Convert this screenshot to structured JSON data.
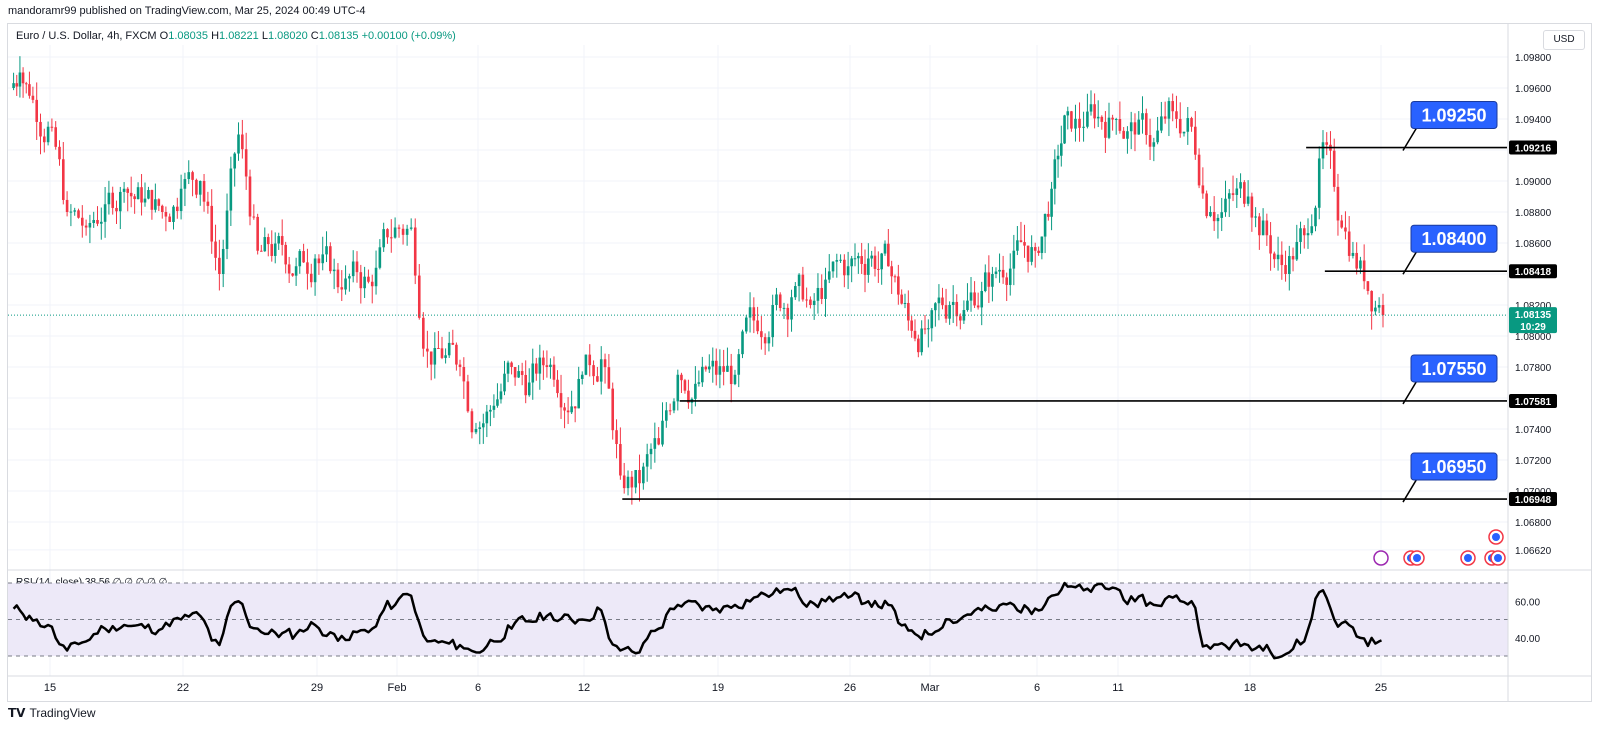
{
  "header": {
    "publisher_line": "mandoramr99 published on TradingView.com, Mar 25, 2024 00:49 UTC-4",
    "symbol": "Euro / U.S. Dollar, 4h, FXCM",
    "o_label": "O",
    "o_value": "1.08035",
    "h_label": "H",
    "h_value": "1.08221",
    "l_label": "L",
    "l_value": "1.08020",
    "c_label": "C",
    "c_value": "1.08135",
    "change": "+0.00100 (+0.09%)"
  },
  "currency_button": "USD",
  "rsi_legend": "RSI (14, close)  38.56  ∅  ∅     ∅  ∅  ∅",
  "footer": {
    "brand": "TradingView"
  },
  "colors": {
    "up": "#089981",
    "down": "#f23645",
    "callout": "#2962ff",
    "rsi_band": "#ede9f8",
    "line": "#000000"
  },
  "chart_data": {
    "type": "candlestick",
    "symbol": "EUR/USD",
    "timeframe": "4h",
    "ylim": [
      1.0655,
      1.0985
    ],
    "y_ticks": [
      "1.09800",
      "1.09600",
      "1.09400",
      "1.09200",
      "1.09000",
      "1.08800",
      "1.08600",
      "1.08400",
      "1.08200",
      "1.08000",
      "1.07800",
      "1.07600",
      "1.07400",
      "1.07200",
      "1.07000",
      "1.06800",
      "1.06620"
    ],
    "x_ticks": [
      "15",
      "22",
      "29",
      "Feb",
      "6",
      "12",
      "19",
      "26",
      "Mar",
      "6",
      "11",
      "18",
      "25"
    ],
    "last_price": {
      "value": "1.08135",
      "countdown": "10:29"
    },
    "horizontal_levels": [
      {
        "value": 1.09216,
        "tag": "1.09216",
        "callout": "1.09250",
        "start_date": "Mar 21"
      },
      {
        "value": 1.08418,
        "tag": "1.08418",
        "callout": "1.08400",
        "start_date": "Mar 22"
      },
      {
        "value": 1.07581,
        "tag": "1.07581",
        "callout": "1.07550",
        "start_date": "Feb 17"
      },
      {
        "value": 1.06948,
        "tag": "1.06948",
        "callout": "1.06950",
        "start_date": "Feb 14"
      }
    ],
    "price_path": [
      {
        "date": "Jan 11",
        "close": 1.097
      },
      {
        "date": "Jan 12",
        "close": 1.0955
      },
      {
        "date": "Jan 13",
        "close": 1.0935
      },
      {
        "date": "Jan 15",
        "close": 1.088
      },
      {
        "date": "Jan 16",
        "close": 1.087
      },
      {
        "date": "Jan 17",
        "close": 1.0885
      },
      {
        "date": "Jan 18",
        "close": 1.0895
      },
      {
        "date": "Jan 19",
        "close": 1.088
      },
      {
        "date": "Jan 21",
        "close": 1.0895
      },
      {
        "date": "Jan 22",
        "close": 1.09
      },
      {
        "date": "Jan 23",
        "close": 1.084
      },
      {
        "date": "Jan 24",
        "close": 1.093
      },
      {
        "date": "Jan 25",
        "close": 1.0855
      },
      {
        "date": "Jan 26",
        "close": 1.0845
      },
      {
        "date": "Jan 28",
        "close": 1.085
      },
      {
        "date": "Jan 29",
        "close": 1.083
      },
      {
        "date": "Jan 30",
        "close": 1.0835
      },
      {
        "date": "Jan 31",
        "close": 1.087
      },
      {
        "date": "Feb 1",
        "close": 1.087
      },
      {
        "date": "Feb 2",
        "close": 1.079
      },
      {
        "date": "Feb 3",
        "close": 1.078
      },
      {
        "date": "Feb 5",
        "close": 1.074
      },
      {
        "date": "Feb 6",
        "close": 1.0755
      },
      {
        "date": "Feb 7",
        "close": 1.078
      },
      {
        "date": "Feb 8",
        "close": 1.077
      },
      {
        "date": "Feb 9",
        "close": 1.078
      },
      {
        "date": "Feb 10",
        "close": 1.0775
      },
      {
        "date": "Feb 12",
        "close": 1.0785
      },
      {
        "date": "Feb 13",
        "close": 1.071
      },
      {
        "date": "Feb 14",
        "close": 1.0705
      },
      {
        "date": "Feb 15",
        "close": 1.073
      },
      {
        "date": "Feb 16",
        "close": 1.0775
      },
      {
        "date": "Feb 17",
        "close": 1.0775
      },
      {
        "date": "Feb 19",
        "close": 1.0775
      },
      {
        "date": "Feb 20",
        "close": 1.081
      },
      {
        "date": "Feb 21",
        "close": 1.082
      },
      {
        "date": "Feb 22",
        "close": 1.0825
      },
      {
        "date": "Feb 23",
        "close": 1.082
      },
      {
        "date": "Feb 24",
        "close": 1.0845
      },
      {
        "date": "Feb 26",
        "close": 1.085
      },
      {
        "date": "Feb 27",
        "close": 1.0845
      },
      {
        "date": "Feb 28",
        "close": 1.081
      },
      {
        "date": "Feb 29",
        "close": 1.0805
      },
      {
        "date": "Mar 1",
        "close": 1.082
      },
      {
        "date": "Mar 2",
        "close": 1.084
      },
      {
        "date": "Mar 4",
        "close": 1.0855
      },
      {
        "date": "Mar 5",
        "close": 1.0855
      },
      {
        "date": "Mar 6",
        "close": 1.0895
      },
      {
        "date": "Mar 7",
        "close": 1.0945
      },
      {
        "date": "Mar 8",
        "close": 1.0935
      },
      {
        "date": "Mar 9",
        "close": 1.094
      },
      {
        "date": "Mar 11",
        "close": 1.093
      },
      {
        "date": "Mar 12",
        "close": 1.0925
      },
      {
        "date": "Mar 13",
        "close": 1.0945
      },
      {
        "date": "Mar 14",
        "close": 1.0935
      },
      {
        "date": "Mar 15",
        "close": 1.088
      },
      {
        "date": "Mar 16",
        "close": 1.089
      },
      {
        "date": "Mar 18",
        "close": 1.0865
      },
      {
        "date": "Mar 19",
        "close": 1.084
      },
      {
        "date": "Mar 20",
        "close": 1.0865
      },
      {
        "date": "Mar 21",
        "close": 1.0925
      },
      {
        "date": "Mar 22",
        "close": 1.087
      },
      {
        "date": "Mar 23",
        "close": 1.082
      },
      {
        "date": "Mar 25",
        "close": 1.08135
      }
    ],
    "rsi": {
      "label": "RSI (14, close)",
      "value": 38.56,
      "upper_band": 70,
      "lower_band": 30,
      "mid": 50,
      "y_ticks": [
        "60.00",
        "40.00"
      ],
      "series": [
        {
          "date": "Jan 11",
          "value": 55
        },
        {
          "date": "Jan 12",
          "value": 52
        },
        {
          "date": "Jan 13",
          "value": 47
        },
        {
          "date": "Jan 15",
          "value": 33
        },
        {
          "date": "Jan 16",
          "value": 38
        },
        {
          "date": "Jan 17",
          "value": 45
        },
        {
          "date": "Jan 18",
          "value": 47
        },
        {
          "date": "Jan 19",
          "value": 45
        },
        {
          "date": "Jan 21",
          "value": 50
        },
        {
          "date": "Jan 22",
          "value": 52
        },
        {
          "date": "Jan 23",
          "value": 36
        },
        {
          "date": "Jan 24",
          "value": 60
        },
        {
          "date": "Jan 25",
          "value": 45
        },
        {
          "date": "Jan 26",
          "value": 42
        },
        {
          "date": "Jan 28",
          "value": 47
        },
        {
          "date": "Jan 29",
          "value": 41
        },
        {
          "date": "Jan 30",
          "value": 43
        },
        {
          "date": "Jan 31",
          "value": 58
        },
        {
          "date": "Feb 1",
          "value": 63
        },
        {
          "date": "Feb 2",
          "value": 38
        },
        {
          "date": "Feb 3",
          "value": 36
        },
        {
          "date": "Feb 5",
          "value": 32
        },
        {
          "date": "Feb 6",
          "value": 38
        },
        {
          "date": "Feb 7",
          "value": 45
        },
        {
          "date": "Feb 8",
          "value": 49
        },
        {
          "date": "Feb 9",
          "value": 52
        },
        {
          "date": "Feb 10",
          "value": 50
        },
        {
          "date": "Feb 12",
          "value": 55
        },
        {
          "date": "Feb 13",
          "value": 33
        },
        {
          "date": "Feb 14",
          "value": 32
        },
        {
          "date": "Feb 15",
          "value": 45
        },
        {
          "date": "Feb 16",
          "value": 58
        },
        {
          "date": "Feb 17",
          "value": 56
        },
        {
          "date": "Feb 19",
          "value": 58
        },
        {
          "date": "Feb 20",
          "value": 62
        },
        {
          "date": "Feb 21",
          "value": 64
        },
        {
          "date": "Feb 22",
          "value": 66
        },
        {
          "date": "Feb 23",
          "value": 60
        },
        {
          "date": "Feb 24",
          "value": 62
        },
        {
          "date": "Feb 26",
          "value": 60
        },
        {
          "date": "Feb 27",
          "value": 58
        },
        {
          "date": "Feb 28",
          "value": 44
        },
        {
          "date": "Feb 29",
          "value": 42
        },
        {
          "date": "Mar 1",
          "value": 50
        },
        {
          "date": "Mar 2",
          "value": 55
        },
        {
          "date": "Mar 4",
          "value": 58
        },
        {
          "date": "Mar 5",
          "value": 56
        },
        {
          "date": "Mar 6",
          "value": 63
        },
        {
          "date": "Mar 7",
          "value": 68
        },
        {
          "date": "Mar 8",
          "value": 66
        },
        {
          "date": "Mar 9",
          "value": 67
        },
        {
          "date": "Mar 11",
          "value": 60
        },
        {
          "date": "Mar 12",
          "value": 58
        },
        {
          "date": "Mar 13",
          "value": 62
        },
        {
          "date": "Mar 14",
          "value": 60
        },
        {
          "date": "Mar 15",
          "value": 34
        },
        {
          "date": "Mar 16",
          "value": 36
        },
        {
          "date": "Mar 18",
          "value": 36
        },
        {
          "date": "Mar 19",
          "value": 31
        },
        {
          "date": "Mar 20",
          "value": 38
        },
        {
          "date": "Mar 21",
          "value": 66
        },
        {
          "date": "Mar 22",
          "value": 48
        },
        {
          "date": "Mar 23",
          "value": 38
        },
        {
          "date": "Mar 25",
          "value": 38.56
        }
      ]
    }
  }
}
